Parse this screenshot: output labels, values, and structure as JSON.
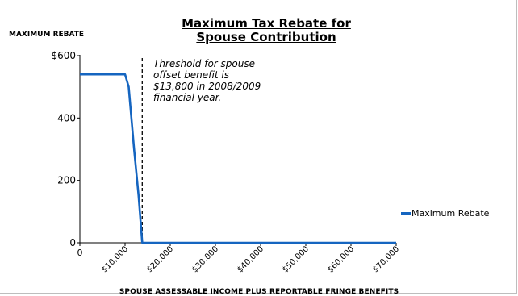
{
  "chart_data": {
    "type": "line",
    "title": [
      "Maximum Tax Rebate for",
      "Spouse Contribution"
    ],
    "ylabel": "MAXIMUM REBATE",
    "xlabel": "SPOUSE ASSESSABLE INCOME PLUS REPORTABLE FRINGE BENEFITS",
    "xlim": [
      0,
      70000
    ],
    "ylim": [
      0,
      600
    ],
    "y_ticks": [
      {
        "value": 600,
        "label": "$600"
      },
      {
        "value": 400,
        "label": "400"
      },
      {
        "value": 200,
        "label": "200"
      },
      {
        "value": 0,
        "label": "0"
      }
    ],
    "x_ticks": [
      {
        "value": 0,
        "label": "0"
      },
      {
        "value": 10000,
        "label": "$10,000"
      },
      {
        "value": 20000,
        "label": "$20,000"
      },
      {
        "value": 30000,
        "label": "$30,000"
      },
      {
        "value": 40000,
        "label": "$40,000"
      },
      {
        "value": 50000,
        "label": "$50,000"
      },
      {
        "value": 60000,
        "label": "$60,000"
      },
      {
        "value": 70000,
        "label": "$70,000"
      }
    ],
    "series": [
      {
        "name": "Maximum Rebate",
        "color": "#1565c0",
        "x": [
          0,
          10000,
          10800,
          12000,
          13000,
          13800,
          15000,
          70000
        ],
        "y": [
          540,
          540,
          500,
          300,
          150,
          0,
          0,
          0
        ]
      }
    ],
    "threshold": {
      "x": 13800,
      "style": "dashed"
    },
    "annotation": [
      "Threshold for spouse",
      "offset benefit is",
      "$13,800 in 2008/2009",
      "financial year."
    ],
    "legend_position": "right",
    "grid": false
  }
}
